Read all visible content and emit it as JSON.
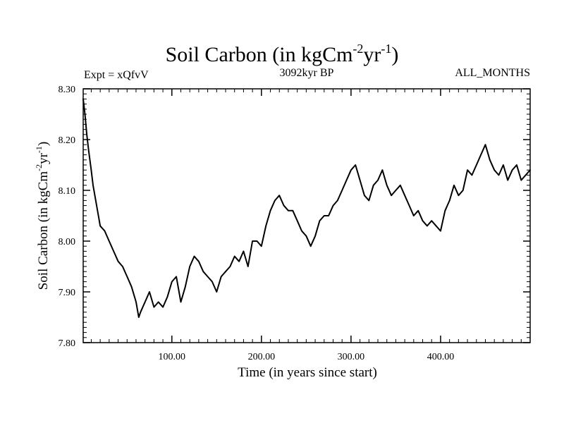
{
  "chart_data": {
    "type": "line",
    "title": {
      "main": "Soil Carbon (in kgCm",
      "sup1": "-2",
      "middle": "yr",
      "sup2": "-1",
      "end": ")"
    },
    "left_subtitle": "Expt = xQfvV",
    "center_subtitle": "3092kyr BP",
    "right_subtitle": "ALL_MONTHS",
    "xlabel": "Time (in years since start)",
    "ylabel": {
      "main": "Soil Carbon (in kgCm",
      "sup1": "-2",
      "middle": "yr",
      "sup2": "-1",
      "end": ")"
    },
    "xlim": [
      1,
      500
    ],
    "ylim": [
      7.8,
      8.3
    ],
    "x_ticks": [
      {
        "value": 100,
        "label": "100.00"
      },
      {
        "value": 200,
        "label": "200.00"
      },
      {
        "value": 300,
        "label": "300.00"
      },
      {
        "value": 400,
        "label": "400.00"
      }
    ],
    "y_ticks": [
      {
        "value": 7.8,
        "label": "7.80"
      },
      {
        "value": 7.9,
        "label": "7.90"
      },
      {
        "value": 8.0,
        "label": "8.00"
      },
      {
        "value": 8.1,
        "label": "8.10"
      },
      {
        "value": 8.2,
        "label": "8.20"
      },
      {
        "value": 8.3,
        "label": "8.30"
      }
    ],
    "series": [
      {
        "name": "Soil Carbon",
        "x": [
          1,
          3,
          5,
          7,
          10,
          12,
          15,
          18,
          20,
          25,
          30,
          35,
          40,
          45,
          50,
          55,
          60,
          63,
          65,
          70,
          75,
          80,
          85,
          90,
          95,
          100,
          105,
          110,
          115,
          120,
          125,
          130,
          135,
          140,
          145,
          150,
          155,
          160,
          165,
          170,
          175,
          180,
          185,
          190,
          195,
          200,
          205,
          210,
          215,
          220,
          225,
          230,
          235,
          240,
          245,
          250,
          255,
          260,
          265,
          270,
          275,
          280,
          285,
          290,
          295,
          300,
          305,
          310,
          315,
          320,
          325,
          330,
          335,
          340,
          345,
          350,
          355,
          360,
          365,
          370,
          375,
          380,
          385,
          390,
          395,
          400,
          405,
          410,
          415,
          420,
          425,
          430,
          435,
          440,
          445,
          450,
          455,
          460,
          465,
          470,
          475,
          480,
          485,
          490,
          495,
          500
        ],
        "y": [
          8.28,
          8.25,
          8.21,
          8.18,
          8.14,
          8.11,
          8.08,
          8.05,
          8.03,
          8.02,
          8.0,
          7.98,
          7.96,
          7.95,
          7.93,
          7.91,
          7.88,
          7.85,
          7.86,
          7.88,
          7.9,
          7.87,
          7.88,
          7.87,
          7.89,
          7.92,
          7.93,
          7.88,
          7.91,
          7.95,
          7.97,
          7.96,
          7.94,
          7.93,
          7.92,
          7.9,
          7.93,
          7.94,
          7.95,
          7.97,
          7.96,
          7.98,
          7.95,
          8.0,
          8.0,
          7.99,
          8.03,
          8.06,
          8.08,
          8.09,
          8.07,
          8.06,
          8.06,
          8.04,
          8.02,
          8.01,
          7.99,
          8.01,
          8.04,
          8.05,
          8.05,
          8.07,
          8.08,
          8.1,
          8.12,
          8.14,
          8.15,
          8.12,
          8.09,
          8.08,
          8.11,
          8.12,
          8.14,
          8.11,
          8.09,
          8.1,
          8.11,
          8.09,
          8.07,
          8.05,
          8.06,
          8.04,
          8.03,
          8.04,
          8.03,
          8.02,
          8.06,
          8.08,
          8.11,
          8.09,
          8.1,
          8.14,
          8.13,
          8.15,
          8.17,
          8.19,
          8.16,
          8.14,
          8.13,
          8.15,
          8.12,
          8.14,
          8.15,
          8.12,
          8.13,
          8.14
        ]
      }
    ]
  }
}
